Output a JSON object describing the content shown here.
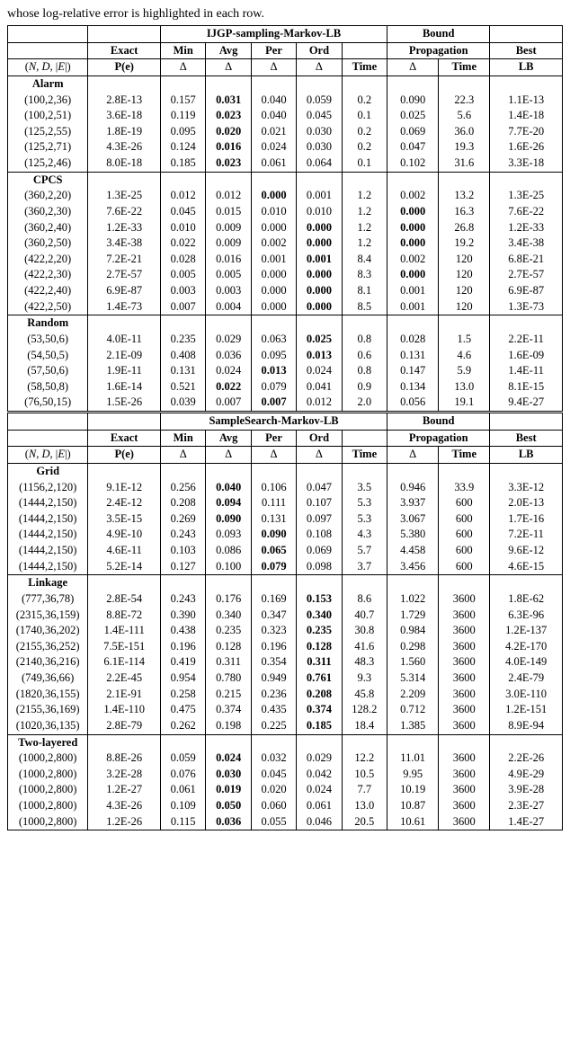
{
  "caption_fragment": "whose log-relative error is highlighted in each row.",
  "headers": {
    "top_group_main": "IJGP-sampling-Markov-LB",
    "top_group_bound": "Bound",
    "exact": "Exact",
    "min": "Min",
    "avg": "Avg",
    "per": "Per",
    "ord": "Ord",
    "propagation": "Propagation",
    "best": "Best",
    "instance": "(N, D, |E|)",
    "pe": "P(e)",
    "delta": "Δ",
    "time": "Time",
    "lb": "LB",
    "second_group_main": "SampleSearch-Markov-LB"
  },
  "sections_top": [
    {
      "name": "Alarm",
      "rows": [
        {
          "inst": "(100,2,36)",
          "pe": "2.8E-13",
          "min": "0.157",
          "avg": "0.031",
          "per": "0.040",
          "ord": "0.059",
          "t": "0.2",
          "bp": "0.090",
          "bt": "22.3",
          "lb": "1.1E-13",
          "bold": "avg"
        },
        {
          "inst": "(100,2,51)",
          "pe": "3.6E-18",
          "min": "0.119",
          "avg": "0.023",
          "per": "0.040",
          "ord": "0.045",
          "t": "0.1",
          "bp": "0.025",
          "bt": "5.6",
          "lb": "1.4E-18",
          "bold": "avg"
        },
        {
          "inst": "(125,2,55)",
          "pe": "1.8E-19",
          "min": "0.095",
          "avg": "0.020",
          "per": "0.021",
          "ord": "0.030",
          "t": "0.2",
          "bp": "0.069",
          "bt": "36.0",
          "lb": "7.7E-20",
          "bold": "avg"
        },
        {
          "inst": "(125,2,71)",
          "pe": "4.3E-26",
          "min": "0.124",
          "avg": "0.016",
          "per": "0.024",
          "ord": "0.030",
          "t": "0.2",
          "bp": "0.047",
          "bt": "19.3",
          "lb": "1.6E-26",
          "bold": "avg"
        },
        {
          "inst": "(125,2,46)",
          "pe": "8.0E-18",
          "min": "0.185",
          "avg": "0.023",
          "per": "0.061",
          "ord": "0.064",
          "t": "0.1",
          "bp": "0.102",
          "bt": "31.6",
          "lb": "3.3E-18",
          "bold": "avg"
        }
      ]
    },
    {
      "name": "CPCS",
      "rows": [
        {
          "inst": "(360,2,20)",
          "pe": "1.3E-25",
          "min": "0.012",
          "avg": "0.012",
          "per": "0.000",
          "ord": "0.001",
          "t": "1.2",
          "bp": "0.002",
          "bt": "13.2",
          "lb": "1.3E-25",
          "bold": "per"
        },
        {
          "inst": "(360,2,30)",
          "pe": "7.6E-22",
          "min": "0.045",
          "avg": "0.015",
          "per": "0.010",
          "ord": "0.010",
          "t": "1.2",
          "bp": "0.000",
          "bt": "16.3",
          "lb": "7.6E-22",
          "bold": "bp"
        },
        {
          "inst": "(360,2,40)",
          "pe": "1.2E-33",
          "min": "0.010",
          "avg": "0.009",
          "per": "0.000",
          "ord": "0.000",
          "t": "1.2",
          "bp": "0.000",
          "bt": "26.8",
          "lb": "1.2E-33",
          "bold": "ord,bp"
        },
        {
          "inst": "(360,2,50)",
          "pe": "3.4E-38",
          "min": "0.022",
          "avg": "0.009",
          "per": "0.002",
          "ord": "0.000",
          "t": "1.2",
          "bp": "0.000",
          "bt": "19.2",
          "lb": "3.4E-38",
          "bold": "ord,bp"
        },
        {
          "inst": "(422,2,20)",
          "pe": "7.2E-21",
          "min": "0.028",
          "avg": "0.016",
          "per": "0.001",
          "ord": "0.001",
          "t": "8.4",
          "bp": "0.002",
          "bt": "120",
          "lb": "6.8E-21",
          "bold": "ord"
        },
        {
          "inst": "(422,2,30)",
          "pe": "2.7E-57",
          "min": "0.005",
          "avg": "0.005",
          "per": "0.000",
          "ord": "0.000",
          "t": "8.3",
          "bp": "0.000",
          "bt": "120",
          "lb": "2.7E-57",
          "bold": "ord,bp"
        },
        {
          "inst": "(422,2,40)",
          "pe": "6.9E-87",
          "min": "0.003",
          "avg": "0.003",
          "per": "0.000",
          "ord": "0.000",
          "t": "8.1",
          "bp": "0.001",
          "bt": "120",
          "lb": "6.9E-87",
          "bold": "ord"
        },
        {
          "inst": "(422,2,50)",
          "pe": "1.4E-73",
          "min": "0.007",
          "avg": "0.004",
          "per": "0.000",
          "ord": "0.000",
          "t": "8.5",
          "bp": "0.001",
          "bt": "120",
          "lb": "1.3E-73",
          "bold": "ord"
        }
      ]
    },
    {
      "name": "Random",
      "rows": [
        {
          "inst": "(53,50,6)",
          "pe": "4.0E-11",
          "min": "0.235",
          "avg": "0.029",
          "per": "0.063",
          "ord": "0.025",
          "t": "0.8",
          "bp": "0.028",
          "bt": "1.5",
          "lb": "2.2E-11",
          "bold": "ord"
        },
        {
          "inst": "(54,50,5)",
          "pe": "2.1E-09",
          "min": "0.408",
          "avg": "0.036",
          "per": "0.095",
          "ord": "0.013",
          "t": "0.6",
          "bp": "0.131",
          "bt": "4.6",
          "lb": "1.6E-09",
          "bold": "ord"
        },
        {
          "inst": "(57,50,6)",
          "pe": "1.9E-11",
          "min": "0.131",
          "avg": "0.024",
          "per": "0.013",
          "ord": "0.024",
          "t": "0.8",
          "bp": "0.147",
          "bt": "5.9",
          "lb": "1.4E-11",
          "bold": "per"
        },
        {
          "inst": "(58,50,8)",
          "pe": "1.6E-14",
          "min": "0.521",
          "avg": "0.022",
          "per": "0.079",
          "ord": "0.041",
          "t": "0.9",
          "bp": "0.134",
          "bt": "13.0",
          "lb": "8.1E-15",
          "bold": "avg"
        },
        {
          "inst": "(76,50,15)",
          "pe": "1.5E-26",
          "min": "0.039",
          "avg": "0.007",
          "per": "0.007",
          "ord": "0.012",
          "t": "2.0",
          "bp": "0.056",
          "bt": "19.1",
          "lb": "9.4E-27",
          "bold": "per"
        }
      ]
    }
  ],
  "sections_bottom": [
    {
      "name": "Grid",
      "rows": [
        {
          "inst": "(1156,2,120)",
          "pe": "9.1E-12",
          "min": "0.256",
          "avg": "0.040",
          "per": "0.106",
          "ord": "0.047",
          "t": "3.5",
          "bp": "0.946",
          "bt": "33.9",
          "lb": "3.3E-12",
          "bold": "avg"
        },
        {
          "inst": "(1444,2,150)",
          "pe": "2.4E-12",
          "min": "0.208",
          "avg": "0.094",
          "per": "0.111",
          "ord": "0.107",
          "t": "5.3",
          "bp": "3.937",
          "bt": "600",
          "lb": "2.0E-13",
          "bold": "avg"
        },
        {
          "inst": "(1444,2,150)",
          "pe": "3.5E-15",
          "min": "0.269",
          "avg": "0.090",
          "per": "0.131",
          "ord": "0.097",
          "t": "5.3",
          "bp": "3.067",
          "bt": "600",
          "lb": "1.7E-16",
          "bold": "avg"
        },
        {
          "inst": "(1444,2,150)",
          "pe": "4.9E-10",
          "min": "0.243",
          "avg": "0.093",
          "per": "0.090",
          "ord": "0.108",
          "t": "4.3",
          "bp": "5.380",
          "bt": "600",
          "lb": "7.2E-11",
          "bold": "per"
        },
        {
          "inst": "(1444,2,150)",
          "pe": "4.6E-11",
          "min": "0.103",
          "avg": "0.086",
          "per": "0.065",
          "ord": "0.069",
          "t": "5.7",
          "bp": "4.458",
          "bt": "600",
          "lb": "9.6E-12",
          "bold": "per"
        },
        {
          "inst": "(1444,2,150)",
          "pe": "5.2E-14",
          "min": "0.127",
          "avg": "0.100",
          "per": "0.079",
          "ord": "0.098",
          "t": "3.7",
          "bp": "3.456",
          "bt": "600",
          "lb": "4.6E-15",
          "bold": "per"
        }
      ]
    },
    {
      "name": "Linkage",
      "rows": [
        {
          "inst": "(777,36,78)",
          "pe": "2.8E-54",
          "min": "0.243",
          "avg": "0.176",
          "per": "0.169",
          "ord": "0.153",
          "t": "8.6",
          "bp": "1.022",
          "bt": "3600",
          "lb": "1.8E-62",
          "bold": "ord"
        },
        {
          "inst": "(2315,36,159)",
          "pe": "8.8E-72",
          "min": "0.390",
          "avg": "0.340",
          "per": "0.347",
          "ord": "0.340",
          "t": "40.7",
          "bp": "1.729",
          "bt": "3600",
          "lb": "6.3E-96",
          "bold": "ord"
        },
        {
          "inst": "(1740,36,202)",
          "pe": "1.4E-111",
          "min": "0.438",
          "avg": "0.235",
          "per": "0.323",
          "ord": "0.235",
          "t": "30.8",
          "bp": "0.984",
          "bt": "3600",
          "lb": "1.2E-137",
          "bold": "ord"
        },
        {
          "inst": "(2155,36,252)",
          "pe": "7.5E-151",
          "min": "0.196",
          "avg": "0.128",
          "per": "0.196",
          "ord": "0.128",
          "t": "41.6",
          "bp": "0.298",
          "bt": "3600",
          "lb": "4.2E-170",
          "bold": "ord"
        },
        {
          "inst": "(2140,36,216)",
          "pe": "6.1E-114",
          "min": "0.419",
          "avg": "0.311",
          "per": "0.354",
          "ord": "0.311",
          "t": "48.3",
          "bp": "1.560",
          "bt": "3600",
          "lb": "4.0E-149",
          "bold": "ord"
        },
        {
          "inst": "(749,36,66)",
          "pe": "2.2E-45",
          "min": "0.954",
          "avg": "0.780",
          "per": "0.949",
          "ord": "0.761",
          "t": "9.3",
          "bp": "5.314",
          "bt": "3600",
          "lb": "2.4E-79",
          "bold": "ord"
        },
        {
          "inst": "(1820,36,155)",
          "pe": "2.1E-91",
          "min": "0.258",
          "avg": "0.215",
          "per": "0.236",
          "ord": "0.208",
          "t": "45.8",
          "bp": "2.209",
          "bt": "3600",
          "lb": "3.0E-110",
          "bold": "ord"
        },
        {
          "inst": "(2155,36,169)",
          "pe": "1.4E-110",
          "min": "0.475",
          "avg": "0.374",
          "per": "0.435",
          "ord": "0.374",
          "t": "128.2",
          "bp": "0.712",
          "bt": "3600",
          "lb": "1.2E-151",
          "bold": "ord"
        },
        {
          "inst": "(1020,36,135)",
          "pe": "2.8E-79",
          "min": "0.262",
          "avg": "0.198",
          "per": "0.225",
          "ord": "0.185",
          "t": "18.4",
          "bp": "1.385",
          "bt": "3600",
          "lb": "8.9E-94",
          "bold": "ord"
        }
      ]
    },
    {
      "name": "Two-layered",
      "rows": [
        {
          "inst": "(1000,2,800)",
          "pe": "8.8E-26",
          "min": "0.059",
          "avg": "0.024",
          "per": "0.032",
          "ord": "0.029",
          "t": "12.2",
          "bp": "11.01",
          "bt": "3600",
          "lb": "2.2E-26",
          "bold": "avg"
        },
        {
          "inst": "(1000,2,800)",
          "pe": "3.2E-28",
          "min": "0.076",
          "avg": "0.030",
          "per": "0.045",
          "ord": "0.042",
          "t": "10.5",
          "bp": "9.95",
          "bt": "3600",
          "lb": "4.9E-29",
          "bold": "avg"
        },
        {
          "inst": "(1000,2,800)",
          "pe": "1.2E-27",
          "min": "0.061",
          "avg": "0.019",
          "per": "0.020",
          "ord": "0.024",
          "t": "7.7",
          "bp": "10.19",
          "bt": "3600",
          "lb": "3.9E-28",
          "bold": "avg"
        },
        {
          "inst": "(1000,2,800)",
          "pe": "4.3E-26",
          "min": "0.109",
          "avg": "0.050",
          "per": "0.060",
          "ord": "0.061",
          "t": "13.0",
          "bp": "10.87",
          "bt": "3600",
          "lb": "2.3E-27",
          "bold": "avg"
        },
        {
          "inst": "(1000,2,800)",
          "pe": "1.2E-26",
          "min": "0.115",
          "avg": "0.036",
          "per": "0.055",
          "ord": "0.046",
          "t": "20.5",
          "bp": "10.61",
          "bt": "3600",
          "lb": "1.4E-27",
          "bold": "avg"
        }
      ]
    }
  ]
}
